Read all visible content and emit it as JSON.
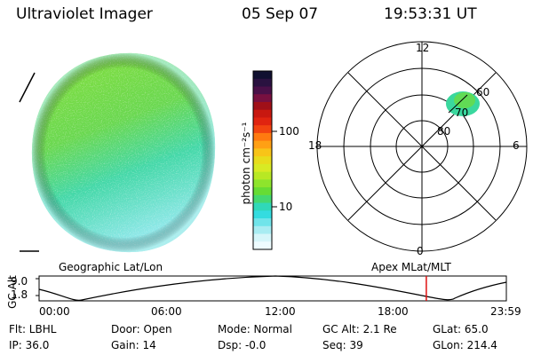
{
  "header": {
    "title": "Ultraviolet Imager",
    "date": "05 Sep 07",
    "time": "19:53:31 UT"
  },
  "colorbar": {
    "unit_label": "photon cm⁻²s⁻¹",
    "tick_labels": [
      "100",
      "10"
    ],
    "colors": [
      "#101030",
      "#2a1240",
      "#4a1048",
      "#781040",
      "#a01018",
      "#c81810",
      "#e02410",
      "#f24410",
      "#ff7a10",
      "#ffa014",
      "#f8c418",
      "#e8dc1c",
      "#d8ea24",
      "#b8e824",
      "#8ee42c",
      "#66dc34",
      "#44d870",
      "#30d8b8",
      "#34dce0",
      "#70e4ea",
      "#a8ecf2",
      "#d6f6fa",
      "#eefcff"
    ]
  },
  "polar": {
    "mlt_labels": [
      "12",
      "18",
      "6",
      "0"
    ],
    "lat_labels": [
      "60",
      "70",
      "80"
    ]
  },
  "timeline": {
    "left_title": "Geographic Lat/Lon",
    "right_title": "Apex MLat/MLT",
    "y_axis_label": "GC Alt",
    "y_ticks": [
      "9.0",
      "1.8"
    ],
    "x_ticks": [
      "00:00",
      "06:00",
      "12:00",
      "18:00",
      "23:59"
    ],
    "current_time_fraction": 0.8288,
    "marker_color": "#e01010"
  },
  "info": {
    "flt": "Flt: LBHL",
    "ip": "IP: 36.0",
    "door": "Door: Open",
    "gain": "Gain: 14",
    "mode": "Mode: Normal",
    "dsp": "Dsp: -0.0",
    "gc_alt": "GC Alt: 2.1 Re",
    "seq": "Seq: 39",
    "glat": "GLat:  65.0",
    "glon": "GLon: 214.4"
  }
}
